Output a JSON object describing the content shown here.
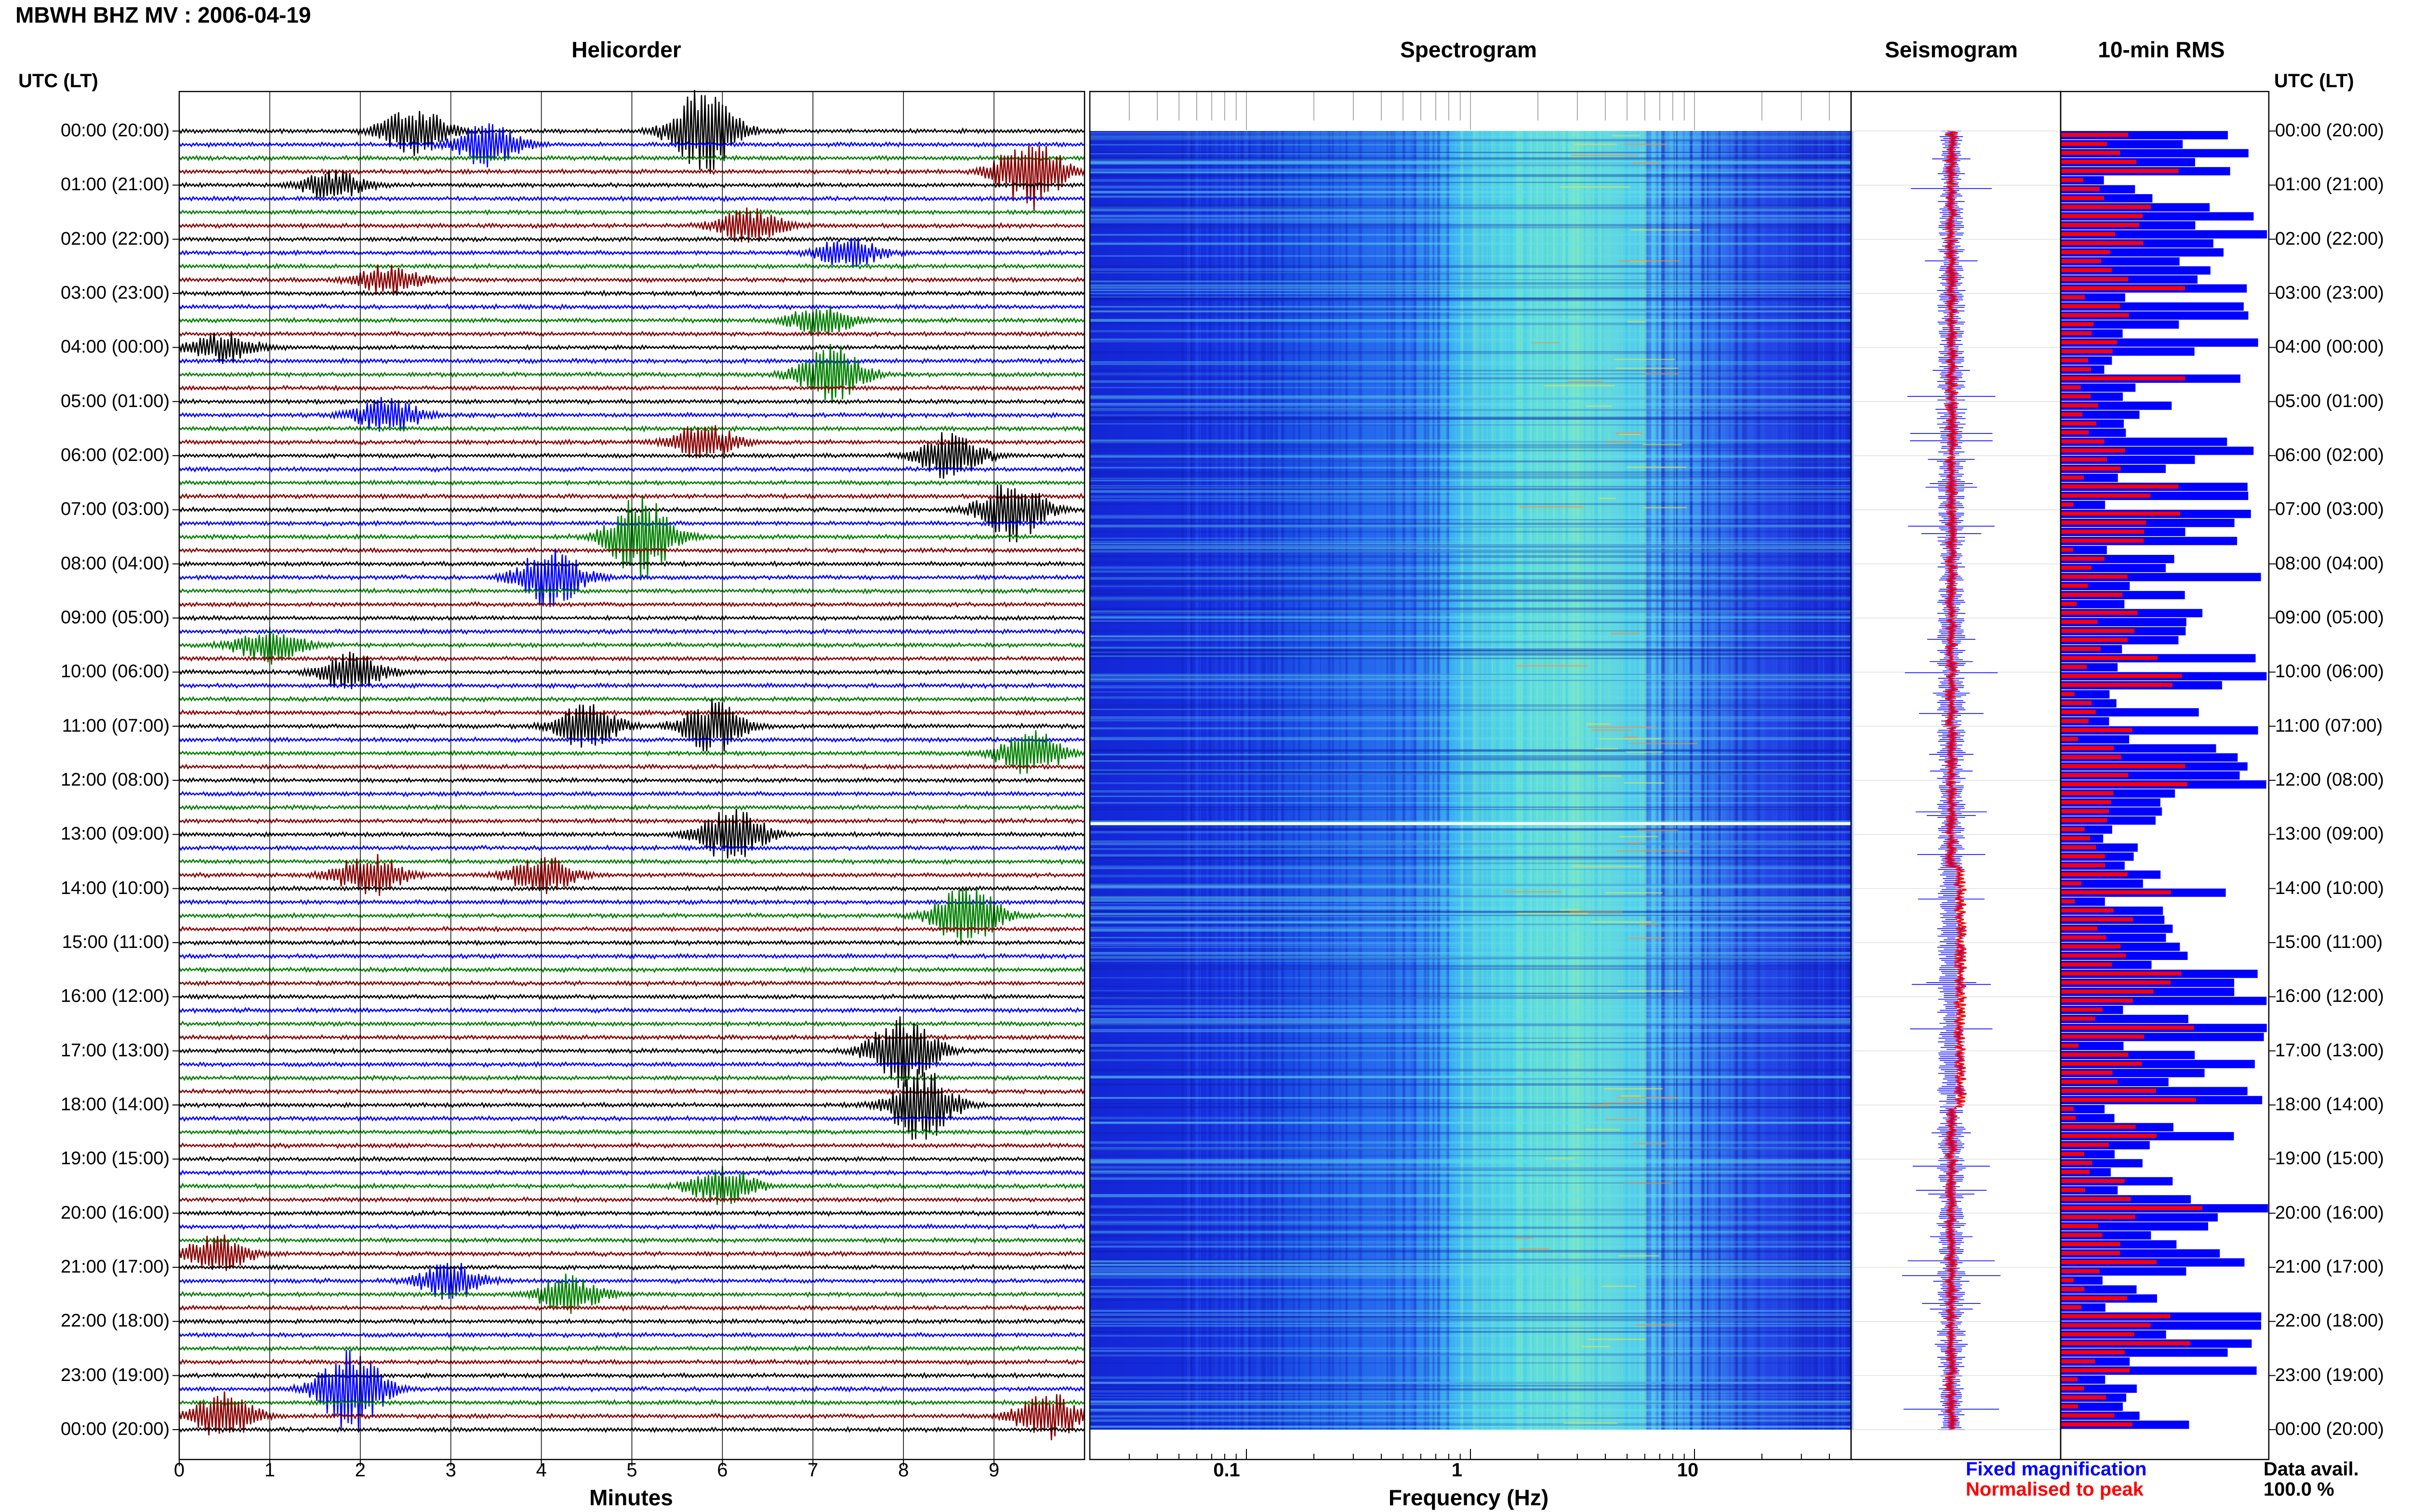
{
  "header": {
    "title": "MBWH BHZ MV : 2006-04-19"
  },
  "panels": {
    "helicorder": "Helicorder",
    "spectrogram": "Spectrogram",
    "seismogram": "Seismogram",
    "rms": "10-min RMS"
  },
  "axis": {
    "utc_label": "UTC (LT)",
    "minutes_label": "Minutes",
    "frequency_label": "Frequency (Hz)"
  },
  "time_labels": [
    "00:00 (20:00)",
    "01:00 (21:00)",
    "02:00 (22:00)",
    "03:00 (23:00)",
    "04:00 (00:00)",
    "05:00 (01:00)",
    "06:00 (02:00)",
    "07:00 (03:00)",
    "08:00 (04:00)",
    "09:00 (05:00)",
    "10:00 (06:00)",
    "11:00 (07:00)",
    "12:00 (08:00)",
    "13:00 (09:00)",
    "14:00 (10:00)",
    "15:00 (11:00)",
    "16:00 (12:00)",
    "17:00 (13:00)",
    "18:00 (14:00)",
    "19:00 (15:00)",
    "20:00 (16:00)",
    "21:00 (17:00)",
    "22:00 (18:00)",
    "23:00 (19:00)",
    "00:00 (20:00)"
  ],
  "minute_ticks": [
    "0",
    "1",
    "2",
    "3",
    "4",
    "5",
    "6",
    "7",
    "8",
    "9"
  ],
  "frequency_ticks": [
    "0.1",
    "1",
    "10"
  ],
  "legend": {
    "fixed": "Fixed magnification",
    "normalised": "Normalised to peak",
    "fixed_color": "#0000ff",
    "normalised_color": "#ff0000"
  },
  "data_avail": {
    "label": "Data avail.",
    "value": "100.0 %"
  },
  "colors": {
    "black": "#000000",
    "blue": "#0000ff",
    "green": "#008000",
    "red": "#8b0000",
    "spectrogram_base": "#1a2be0"
  },
  "chart_data": [
    {
      "type": "line",
      "title": "Helicorder",
      "xlabel": "Minutes",
      "xlim": [
        0,
        10
      ],
      "ylim_hours": [
        0,
        24
      ],
      "trace_colors_cycle": [
        "black",
        "blue",
        "green",
        "red"
      ],
      "events": [
        {
          "hour": 0.0,
          "minute": 2.6,
          "amp": 1.3
        },
        {
          "hour": 0.0,
          "minute": 5.8,
          "amp": 2.3
        },
        {
          "hour": 0.2,
          "minute": 3.4,
          "amp": 1.2
        },
        {
          "hour": 0.8,
          "minute": 9.4,
          "amp": 2.0
        },
        {
          "hour": 1.0,
          "minute": 1.7,
          "amp": 0.8
        },
        {
          "hour": 1.7,
          "minute": 6.3,
          "amp": 0.9
        },
        {
          "hour": 2.2,
          "minute": 7.4,
          "amp": 0.8
        },
        {
          "hour": 2.7,
          "minute": 2.3,
          "amp": 0.8
        },
        {
          "hour": 3.5,
          "minute": 7.1,
          "amp": 0.8
        },
        {
          "hour": 4.0,
          "minute": 0.5,
          "amp": 0.8
        },
        {
          "hour": 4.6,
          "minute": 7.2,
          "amp": 1.6
        },
        {
          "hour": 5.2,
          "minute": 2.3,
          "amp": 1.0
        },
        {
          "hour": 5.8,
          "minute": 5.8,
          "amp": 1.0
        },
        {
          "hour": 6.1,
          "minute": 8.5,
          "amp": 1.2
        },
        {
          "hour": 6.9,
          "minute": 9.2,
          "amp": 1.7
        },
        {
          "hour": 7.5,
          "minute": 5.1,
          "amp": 2.2
        },
        {
          "hour": 8.2,
          "minute": 4.1,
          "amp": 1.6
        },
        {
          "hour": 9.5,
          "minute": 1.0,
          "amp": 1.0
        },
        {
          "hour": 10.0,
          "minute": 1.9,
          "amp": 1.0
        },
        {
          "hour": 11.0,
          "minute": 4.5,
          "amp": 1.2
        },
        {
          "hour": 11.0,
          "minute": 5.9,
          "amp": 1.4
        },
        {
          "hour": 11.6,
          "minute": 9.4,
          "amp": 1.2
        },
        {
          "hour": 12.9,
          "minute": 6.1,
          "amp": 1.5
        },
        {
          "hour": 13.8,
          "minute": 2.1,
          "amp": 1.2
        },
        {
          "hour": 13.8,
          "minute": 4.0,
          "amp": 1.0
        },
        {
          "hour": 14.5,
          "minute": 8.7,
          "amp": 1.7
        },
        {
          "hour": 16.9,
          "minute": 8.0,
          "amp": 2.0
        },
        {
          "hour": 18.0,
          "minute": 8.2,
          "amp": 1.9
        },
        {
          "hour": 19.5,
          "minute": 6.0,
          "amp": 1.0
        },
        {
          "hour": 20.8,
          "minute": 0.4,
          "amp": 1.0
        },
        {
          "hour": 21.2,
          "minute": 3.0,
          "amp": 1.0
        },
        {
          "hour": 21.4,
          "minute": 4.3,
          "amp": 1.0
        },
        {
          "hour": 23.3,
          "minute": 1.9,
          "amp": 2.3
        },
        {
          "hour": 23.7,
          "minute": 0.5,
          "amp": 1.2
        },
        {
          "hour": 23.7,
          "minute": 9.6,
          "amp": 1.3
        }
      ]
    },
    {
      "type": "heatmap",
      "title": "Spectrogram",
      "xlabel": "Frequency (Hz)",
      "x_scale": "log",
      "xlim": [
        0.02,
        50
      ],
      "ylim_hours": [
        0,
        24
      ],
      "gap_hour": 12.8
    },
    {
      "type": "line",
      "title": "Seismogram",
      "series": [
        {
          "name": "Fixed magnification"
        },
        {
          "name": "Normalised to peak"
        }
      ]
    },
    {
      "type": "bar",
      "title": "10-min RMS",
      "orientation": "horizontal",
      "n_bins": 144,
      "ylim_hours": [
        0,
        24
      ]
    }
  ]
}
